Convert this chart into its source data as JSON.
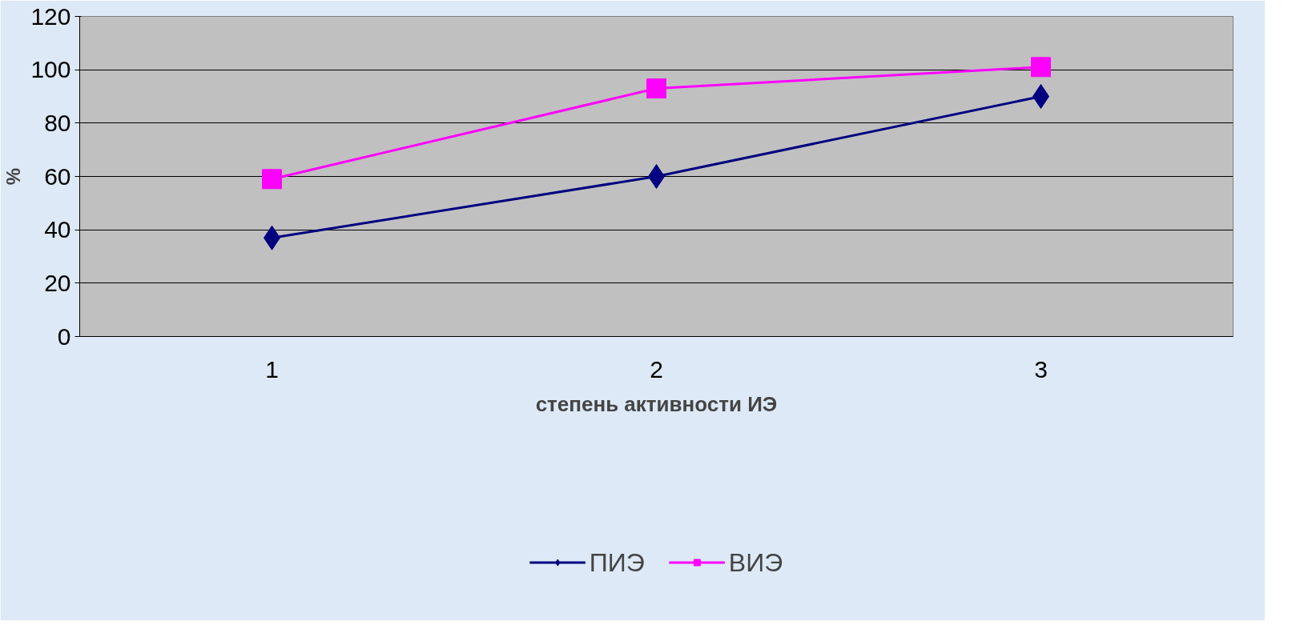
{
  "chart_data": {
    "type": "line",
    "xlabel": "степень активности ИЭ",
    "ylabel": "%",
    "categories": [
      "1",
      "2",
      "3"
    ],
    "ylim": [
      0,
      120
    ],
    "yticks": [
      0,
      20,
      40,
      60,
      80,
      100,
      120
    ],
    "grid": "y",
    "legend": "bottom",
    "line_style": "solid",
    "series": [
      {
        "name": "ПИЭ",
        "color": "#000080",
        "marker": "diamond",
        "values": [
          37,
          60,
          90
        ]
      },
      {
        "name": "ВИЭ",
        "color": "#ff00ff",
        "marker": "square",
        "values": [
          59,
          93,
          101
        ]
      }
    ]
  }
}
